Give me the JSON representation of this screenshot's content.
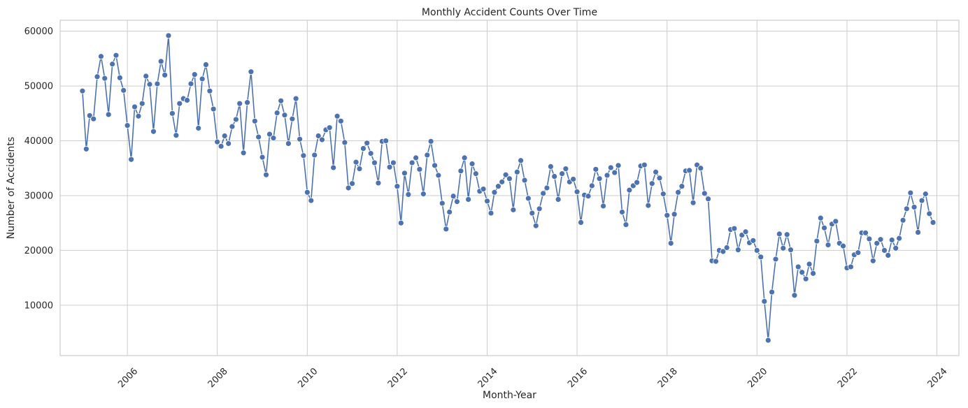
{
  "chart_data": {
    "type": "line",
    "title": "Monthly Accident Counts Over Time",
    "xlabel": "Month-Year",
    "ylabel": "Number of Accidents",
    "xlim": [
      "2004-07-04",
      "2024-06-28"
    ],
    "ylim": [
      800,
      62000
    ],
    "x_tick_labels": [
      "2006",
      "2008",
      "2010",
      "2012",
      "2014",
      "2016",
      "2018",
      "2020",
      "2022",
      "2024"
    ],
    "y_tick_labels": [
      "10000",
      "20000",
      "30000",
      "40000",
      "50000",
      "60000"
    ],
    "y_ticks": [
      10000,
      20000,
      30000,
      40000,
      50000,
      60000
    ],
    "grid": true,
    "series_color": "#4c72b0",
    "series": [
      {
        "start": "2005-01",
        "values": [
          49100,
          38500,
          44600,
          44000,
          51700,
          55400,
          51400,
          44800,
          54000,
          55600,
          51500,
          49200,
          42800,
          36600,
          46200,
          44500,
          46800,
          51800,
          50300,
          41700,
          50400,
          54500,
          52000,
          59200,
          45000,
          41000,
          46800,
          47700,
          47400,
          50400,
          52100,
          42300,
          51300,
          53900,
          49100,
          45800,
          39800,
          39000,
          40900,
          39500,
          42600,
          43900,
          46800,
          37800,
          47000,
          52600,
          43600,
          40700,
          37000,
          33800,
          41200,
          40500,
          45100,
          47300,
          44700,
          39500,
          44000,
          47700,
          40300,
          37300,
          30600,
          29100,
          37400,
          40900,
          40200,
          42000,
          42400,
          35100,
          44500,
          43600,
          39700,
          31400,
          32200,
          36100,
          34900,
          38600,
          39600,
          37700,
          36000,
          32300,
          39900,
          40000,
          35200,
          36000,
          31700,
          25000,
          34100,
          30200,
          36000,
          36900,
          34800,
          30300,
          37400,
          39900,
          35500,
          33700,
          28600,
          23900,
          27000,
          29900,
          28900,
          34500,
          36900,
          29300,
          35800,
          34000,
          30800,
          31200,
          29000,
          26800,
          30600,
          31700,
          32500,
          33800,
          33100,
          27400,
          34300,
          36400,
          32800,
          29500,
          26800,
          24500,
          27600,
          30400,
          31400,
          35300,
          33500,
          29300,
          34000,
          34900,
          32500,
          33000,
          30700,
          25100,
          30100,
          29900,
          31800,
          34800,
          33100,
          28100,
          33700,
          35100,
          34200,
          35500,
          27000,
          24700,
          31000,
          31800,
          32400,
          35400,
          35600,
          28200,
          32200,
          34300,
          33200,
          30300,
          26400,
          21300,
          26600,
          30600,
          31700,
          34500,
          34600,
          28700,
          35600,
          35000,
          30400,
          29400,
          18100,
          18000,
          20000,
          19800,
          20500,
          23800,
          24000,
          20100,
          22800,
          23400,
          21400,
          21800,
          20000,
          18800,
          10700,
          3600,
          12400,
          18400,
          23000,
          20400,
          22900,
          20100,
          11800,
          17000,
          16000,
          14800,
          17500,
          15800,
          21700,
          25900,
          24100,
          21000,
          24800,
          25300,
          21300,
          20800,
          16800,
          17000,
          19200,
          19600,
          23200,
          23200,
          22100,
          18100,
          21300,
          22000,
          20000,
          19100,
          21900,
          20400,
          22200,
          25500,
          27600,
          30500,
          27900,
          23300,
          29100,
          30300,
          26700,
          25100
        ]
      }
    ]
  }
}
